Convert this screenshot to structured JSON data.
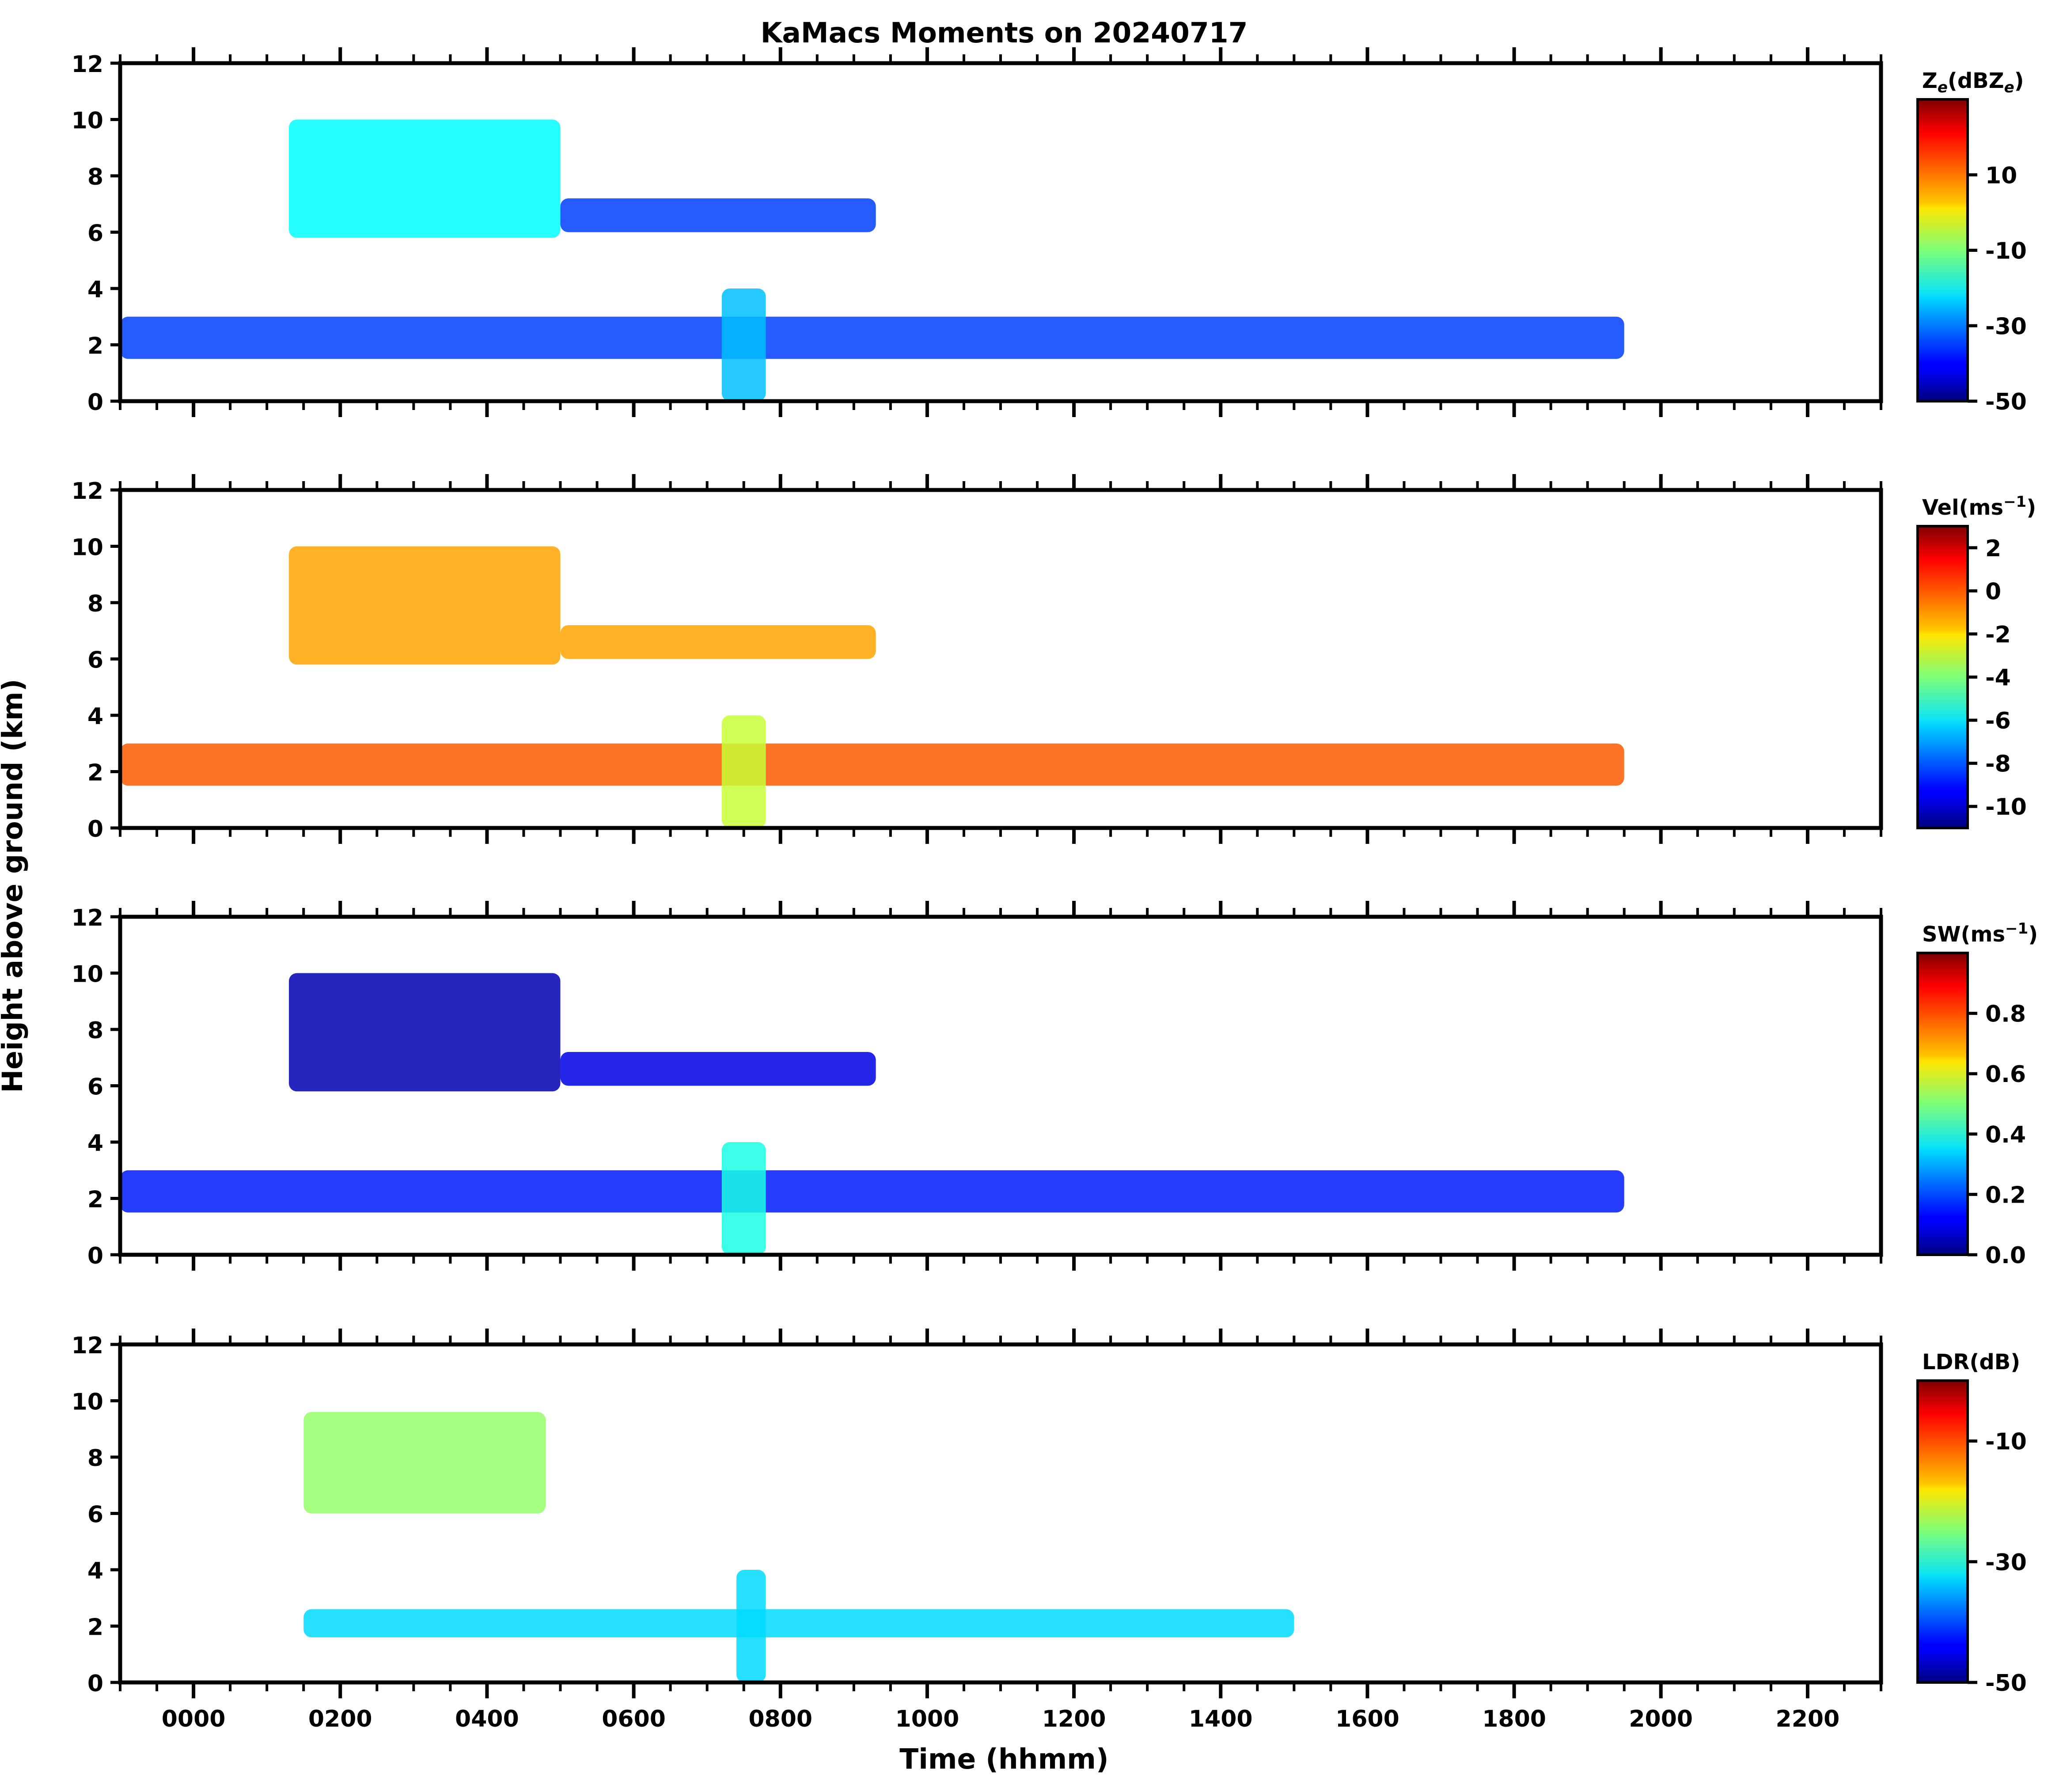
{
  "chart_data": {
    "type": "heatmap",
    "title": "KaMacs Moments on 20240717",
    "xlabel": "Time (hhmm)",
    "ylabel": "Height above ground (km)",
    "xlim": [
      -100,
      2300
    ],
    "x_major_ticks": [
      0,
      200,
      400,
      600,
      800,
      1000,
      1200,
      1400,
      1600,
      1800,
      2000,
      2200
    ],
    "x_tick_labels": [
      "0000",
      "0200",
      "0400",
      "0600",
      "0800",
      "1000",
      "1200",
      "1400",
      "1600",
      "1800",
      "2000",
      "2200"
    ],
    "ylim": [
      0,
      12
    ],
    "y_ticks": [
      0,
      2,
      4,
      6,
      8,
      10,
      12
    ],
    "y_tick_labels": [
      "0",
      "2",
      "4",
      "6",
      "8",
      "10",
      "12"
    ],
    "colormap": "jet",
    "panels": [
      {
        "name": "reflectivity",
        "colorbar_label_main": "Z",
        "colorbar_label_sub": "e",
        "colorbar_label_paren": "(dBZ",
        "colorbar_label_sub2": "e",
        "colorbar_label_close": ")",
        "clim": [
          -50,
          30
        ],
        "colorbar_ticks": [
          -50,
          -30,
          -10,
          10
        ],
        "colorbar_tick_labels": [
          "-50",
          "-30",
          "-10",
          "10"
        ],
        "cloud_layers": [
          {
            "description": "upper ice cloud",
            "x_start": 130,
            "x_end": 500,
            "z_bottom": 5.8,
            "z_top": 10.0,
            "value": -20
          },
          {
            "description": "upper cloud trail",
            "x_start": 500,
            "x_end": 930,
            "z_bottom": 6.0,
            "z_top": 7.2,
            "value": -35
          },
          {
            "description": "low cloud layer",
            "x_start": -100,
            "x_end": 1950,
            "z_bottom": 1.5,
            "z_top": 3.0,
            "value": -35
          },
          {
            "description": "precip fall streak",
            "x_start": 720,
            "x_end": 780,
            "z_bottom": 0.0,
            "z_top": 4.0,
            "value": -25
          }
        ]
      },
      {
        "name": "velocity",
        "colorbar_label_main": "Vel(ms",
        "colorbar_label_sup": "−1",
        "colorbar_label_close": ")",
        "clim": [
          -11,
          3
        ],
        "colorbar_ticks": [
          -10,
          -8,
          -6,
          -4,
          -2,
          0,
          2
        ],
        "colorbar_tick_labels": [
          "-10",
          "-8",
          "-6",
          "-4",
          "-2",
          "0",
          "2"
        ],
        "cloud_layers": [
          {
            "description": "upper ice cloud",
            "x_start": 130,
            "x_end": 500,
            "z_bottom": 5.8,
            "z_top": 10.0,
            "value": -1
          },
          {
            "description": "upper cloud trail",
            "x_start": 500,
            "x_end": 930,
            "z_bottom": 6.0,
            "z_top": 7.2,
            "value": -1
          },
          {
            "description": "low cloud layer",
            "x_start": -100,
            "x_end": 1950,
            "z_bottom": 1.5,
            "z_top": 3.0,
            "value": 0
          },
          {
            "description": "precip fall streak",
            "x_start": 720,
            "x_end": 780,
            "z_bottom": 0.0,
            "z_top": 4.0,
            "value": -3
          }
        ]
      },
      {
        "name": "spectrum_width",
        "colorbar_label_main": "SW(ms",
        "colorbar_label_sup": "−1",
        "colorbar_label_close": ")",
        "clim": [
          0.0,
          1.0
        ],
        "colorbar_ticks": [
          0.0,
          0.2,
          0.4,
          0.6,
          0.8
        ],
        "colorbar_tick_labels": [
          "0.0",
          "0.2",
          "0.4",
          "0.6",
          "0.8"
        ],
        "cloud_layers": [
          {
            "description": "upper ice cloud",
            "x_start": 130,
            "x_end": 500,
            "z_bottom": 5.8,
            "z_top": 10.0,
            "value": 0.05
          },
          {
            "description": "upper cloud trail",
            "x_start": 500,
            "x_end": 930,
            "z_bottom": 6.0,
            "z_top": 7.2,
            "value": 0.1
          },
          {
            "description": "low cloud layer",
            "x_start": -100,
            "x_end": 1950,
            "z_bottom": 1.5,
            "z_top": 3.0,
            "value": 0.15
          },
          {
            "description": "precip fall streak",
            "x_start": 720,
            "x_end": 780,
            "z_bottom": 0.0,
            "z_top": 4.0,
            "value": 0.4
          }
        ]
      },
      {
        "name": "ldr",
        "colorbar_label_main": "LDR(dB)",
        "clim": [
          -50,
          0
        ],
        "colorbar_ticks": [
          -50,
          -30,
          -10
        ],
        "colorbar_tick_labels": [
          "-50",
          "-30",
          "-10"
        ],
        "cloud_layers": [
          {
            "description": "upper ice cloud",
            "x_start": 150,
            "x_end": 480,
            "z_bottom": 6.0,
            "z_top": 9.6,
            "value": -24
          },
          {
            "description": "low cloud layer",
            "x_start": 150,
            "x_end": 1500,
            "z_bottom": 1.6,
            "z_top": 2.6,
            "value": -33
          },
          {
            "description": "precip fall streak",
            "x_start": 740,
            "x_end": 780,
            "z_bottom": 0.0,
            "z_top": 4.0,
            "value": -33
          }
        ]
      }
    ]
  }
}
